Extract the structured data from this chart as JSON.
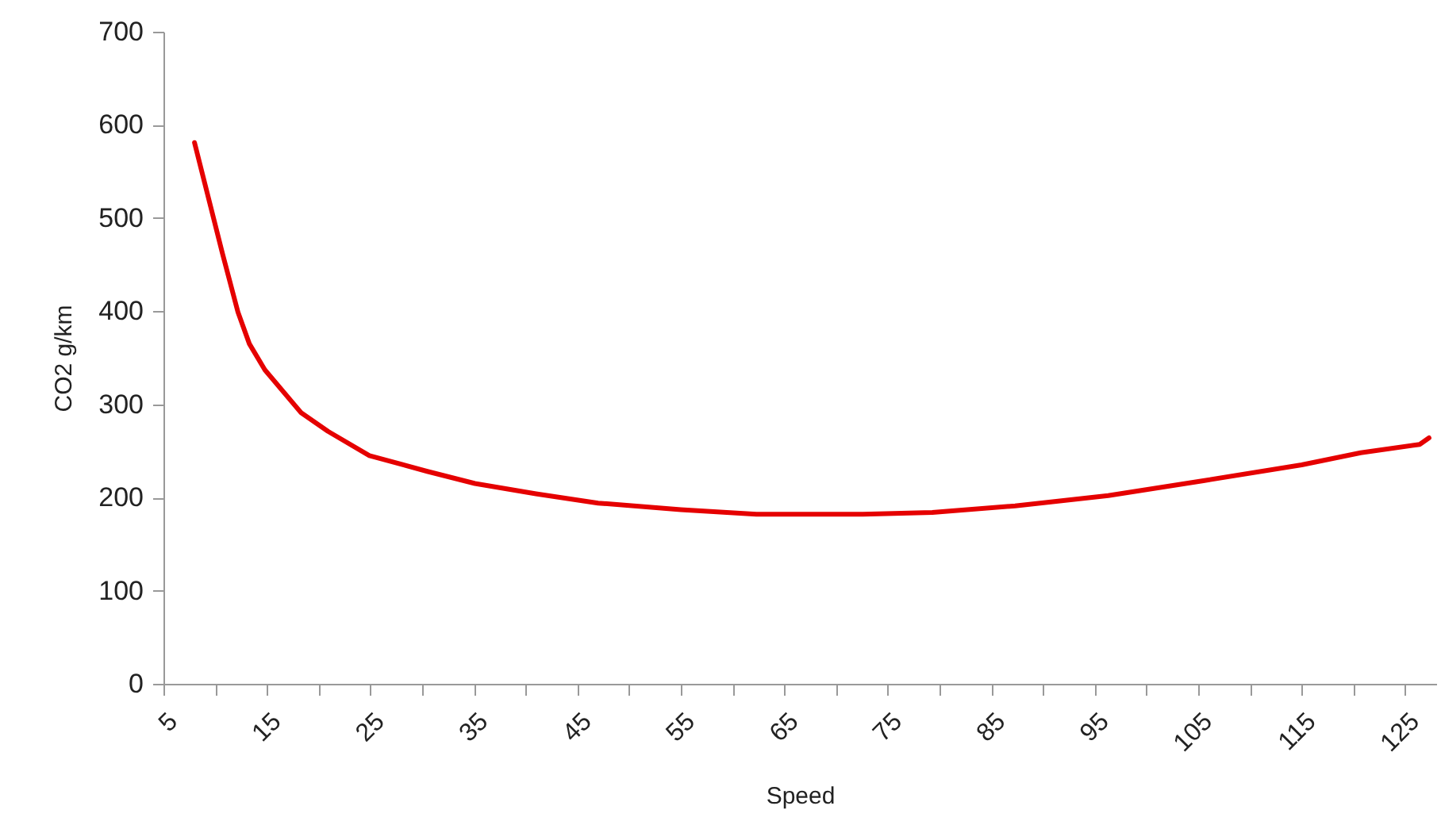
{
  "chart_data": {
    "type": "line",
    "xlabel": "Speed",
    "ylabel": "CO2 g/km",
    "x": [
      8,
      10.7,
      12.2,
      13.3,
      14.8,
      18.3,
      20.9,
      24.9,
      30.5,
      35.1,
      41,
      47,
      55,
      62.3,
      72.6,
      79.3,
      87.3,
      96.3,
      105.5,
      115,
      120.7,
      126.4,
      127.3
    ],
    "series": [
      {
        "color": "#e50000",
        "values": [
          581,
          462,
          399,
          365,
          337,
          291,
          271,
          245,
          228,
          215,
          204,
          194,
          187,
          182,
          182,
          184,
          191,
          202,
          218,
          235,
          248,
          257,
          264
        ]
      }
    ],
    "xlim": [
      5,
      128
    ],
    "xticks": [
      5,
      {
        "value": 10,
        "label": null
      },
      15,
      {
        "value": 20,
        "label": null
      },
      25,
      {
        "value": 30,
        "label": null
      },
      35,
      {
        "value": 40,
        "label": null
      },
      45,
      {
        "value": 50,
        "label": null
      },
      55,
      {
        "value": 60,
        "label": null
      },
      65,
      {
        "value": 70,
        "label": null
      },
      75,
      {
        "value": 80,
        "label": null
      },
      85,
      {
        "value": 90,
        "label": null
      },
      95,
      {
        "value": 100,
        "label": null
      },
      105,
      {
        "value": 110,
        "label": null
      },
      115,
      {
        "value": 120,
        "label": null
      },
      125
    ],
    "ylim": [
      0,
      700
    ],
    "yticks": [
      0,
      100,
      200,
      300,
      400,
      500,
      600,
      700
    ],
    "grid": false,
    "legend": false,
    "marker": "none",
    "line_style": "solid"
  }
}
